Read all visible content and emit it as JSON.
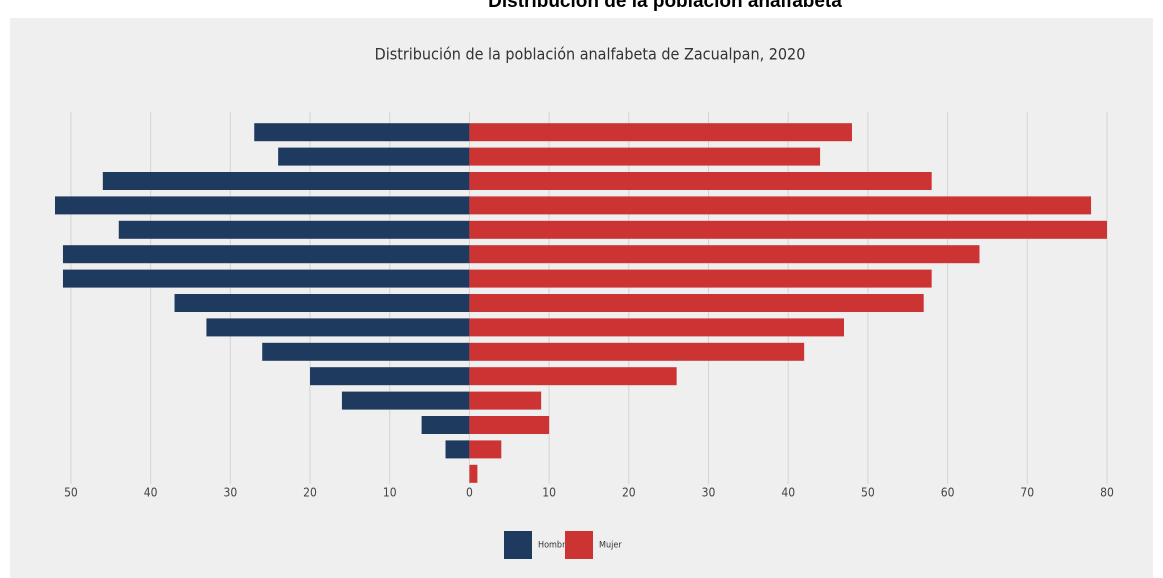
{
  "page_title": "Distribución de la población analfabeta",
  "chart_data": {
    "type": "pyramid",
    "title": "Distribución de la población analfabeta de Zacualpan, 2020",
    "categories": [
      null,
      null,
      null,
      null,
      null,
      null,
      null,
      null,
      null,
      null,
      null,
      null,
      null,
      null,
      null
    ],
    "series": [
      {
        "name": "Hombre",
        "color": "#1f3a5f",
        "values": [
          -27,
          -24,
          -46,
          -52,
          -44,
          -51,
          -51,
          -37,
          -33,
          -26,
          -20,
          -16,
          -6,
          -3,
          0
        ]
      },
      {
        "name": "Mujer",
        "color": "#cc3333",
        "values": [
          48,
          44,
          58,
          78,
          80,
          64,
          58,
          57,
          47,
          42,
          26,
          9,
          10,
          4,
          1
        ]
      }
    ],
    "xlim": [
      -52,
      80
    ],
    "xticks": [
      {
        "value": -50,
        "label": "50"
      },
      {
        "value": -40,
        "label": "40"
      },
      {
        "value": -30,
        "label": "30"
      },
      {
        "value": -20,
        "label": "20"
      },
      {
        "value": -10,
        "label": "10"
      },
      0,
      10,
      20,
      30,
      40,
      50,
      60,
      70,
      80
    ],
    "grid": true,
    "legend": "bottom"
  }
}
